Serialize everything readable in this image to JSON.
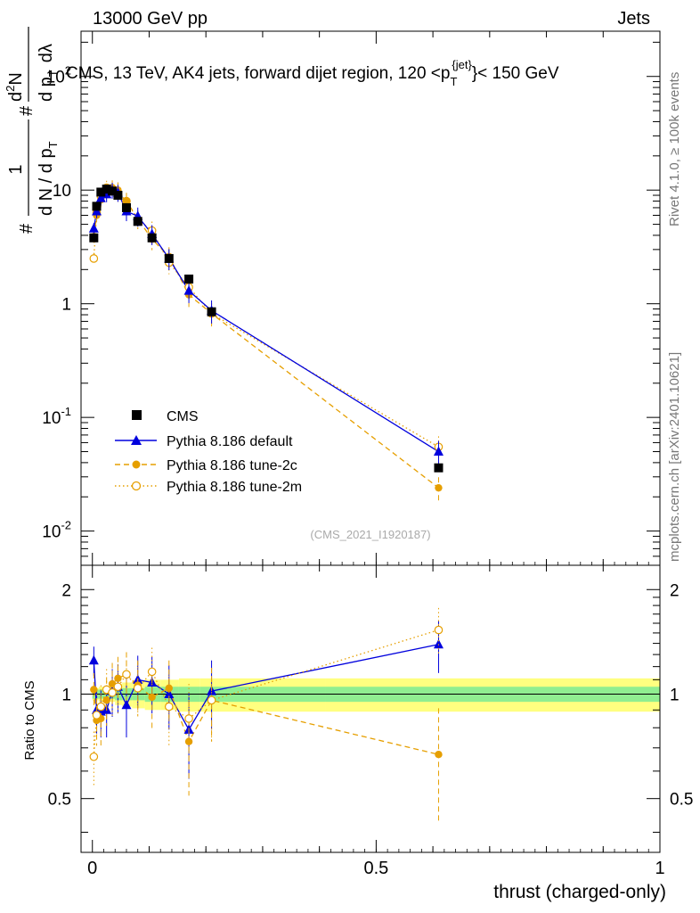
{
  "header": {
    "left": "13000 GeV pp",
    "right": "Jets"
  },
  "title_parts": {
    "main": "CMS, 13 TeV, AK4 jets, forward dijet region, 120 <p",
    "sub": "T",
    "sup": "{jet}",
    "tail": "}< 150 GeV"
  },
  "ylabel_parts": {
    "a": "#",
    "b": "1",
    "c": "d N / d p",
    "d": "T",
    "e": "#",
    "f": "d",
    "g": "2",
    "h": "N",
    "i": "d p",
    "j": "T",
    "k": "dλ"
  },
  "xlabel": "thrust (charged-only)",
  "ratio_ylabel": "Ratio to CMS",
  "right_note_top": "Rivet 4.1.0, ≥ 100k events",
  "right_note_bottom": "mcplots.cern.ch [arXiv:2401.10621]",
  "watermark": "(CMS_2021_I1920187)",
  "colors": {
    "cms": "#000000",
    "default": "#0000dd",
    "tune2c": "#e69f00",
    "tune2m": "#e69f00",
    "band_inner": "#90ee90",
    "band_outer": "#ffff80"
  },
  "chart_data": {
    "type": "line",
    "xlabel": "thrust (charged-only)",
    "xlim": [
      -0.02,
      1.0
    ],
    "main": {
      "ylabel": "1/N dN/dp_T  d2N/dp_T dlambda",
      "yscale": "log",
      "ylim": [
        0.005,
        250
      ],
      "yticks": [
        {
          "value": 0.01,
          "base": "10",
          "exp": "-2"
        },
        {
          "value": 0.1,
          "base": "10",
          "exp": "-1"
        },
        {
          "value": 1,
          "base": "1",
          "exp": ""
        },
        {
          "value": 10,
          "base": "10",
          "exp": ""
        },
        {
          "value": 100,
          "base": "10",
          "exp": "2"
        }
      ]
    },
    "ratio": {
      "ylabel": "Ratio to CMS",
      "ylim": [
        0.35,
        2.35
      ],
      "yticks": [
        0.5,
        1,
        2
      ]
    },
    "xticks": [
      0,
      0.5,
      1
    ],
    "x": [
      0.0025,
      0.0075,
      0.015,
      0.025,
      0.035,
      0.045,
      0.06,
      0.08,
      0.105,
      0.135,
      0.17,
      0.21,
      0.61
    ],
    "legend": [
      {
        "key": "cms",
        "label": "CMS"
      },
      {
        "key": "default",
        "label": "Pythia 8.186 default"
      },
      {
        "key": "tune2c",
        "label": "Pythia 8.186 tune-2c"
      },
      {
        "key": "tune2m",
        "label": "Pythia 8.186 tune-2m"
      }
    ],
    "series": [
      {
        "key": "cms",
        "name": "CMS",
        "marker": "square",
        "values": [
          3.8,
          7.2,
          9.6,
          10.2,
          9.8,
          9.0,
          7.0,
          5.3,
          3.8,
          2.5,
          1.65,
          0.85,
          0.036
        ]
      },
      {
        "key": "default",
        "name": "Pythia 8.186 default",
        "marker": "triangle",
        "line": "solid",
        "values": [
          4.6,
          6.5,
          8.5,
          9.2,
          10.0,
          9.5,
          6.5,
          5.9,
          4.1,
          2.5,
          1.3,
          0.87,
          0.05
        ]
      },
      {
        "key": "tune2c",
        "name": "Pythia 8.186 tune-2c",
        "marker": "filled-circle",
        "line": "dashed",
        "values": [
          3.9,
          6.0,
          8.2,
          9.8,
          10.5,
          10.0,
          8.0,
          5.6,
          3.7,
          2.6,
          1.2,
          0.82,
          0.024
        ]
      },
      {
        "key": "tune2m",
        "name": "Pythia 8.186 tune-2m",
        "marker": "open-circle",
        "line": "dotted",
        "values": [
          2.5,
          6.3,
          8.8,
          10.5,
          9.9,
          9.5,
          8.0,
          5.5,
          4.4,
          2.3,
          1.4,
          0.82,
          0.055
        ]
      }
    ],
    "ratio_series": [
      {
        "key": "default",
        "values": [
          1.25,
          0.9,
          0.89,
          0.9,
          1.02,
          1.05,
          0.93,
          1.1,
          1.08,
          1.0,
          0.79,
          1.02,
          1.39
        ]
      },
      {
        "key": "tune2c",
        "values": [
          1.03,
          0.84,
          0.85,
          0.96,
          1.07,
          1.11,
          1.14,
          1.06,
          0.98,
          1.04,
          0.73,
          0.96,
          0.67
        ]
      },
      {
        "key": "tune2m",
        "values": [
          0.66,
          0.87,
          0.92,
          1.03,
          1.01,
          1.05,
          1.14,
          1.04,
          1.16,
          0.92,
          0.85,
          0.96,
          1.53
        ]
      }
    ],
    "band_inner_halfwidth": [
      0.03,
      0.03,
      0.03,
      0.03,
      0.03,
      0.04,
      0.04,
      0.04,
      0.05,
      0.05,
      0.05,
      0.05,
      0.05
    ],
    "band_outer_halfwidth": [
      0.04,
      0.04,
      0.05,
      0.05,
      0.05,
      0.07,
      0.08,
      0.09,
      0.1,
      0.1,
      0.11,
      0.11,
      0.11
    ]
  }
}
